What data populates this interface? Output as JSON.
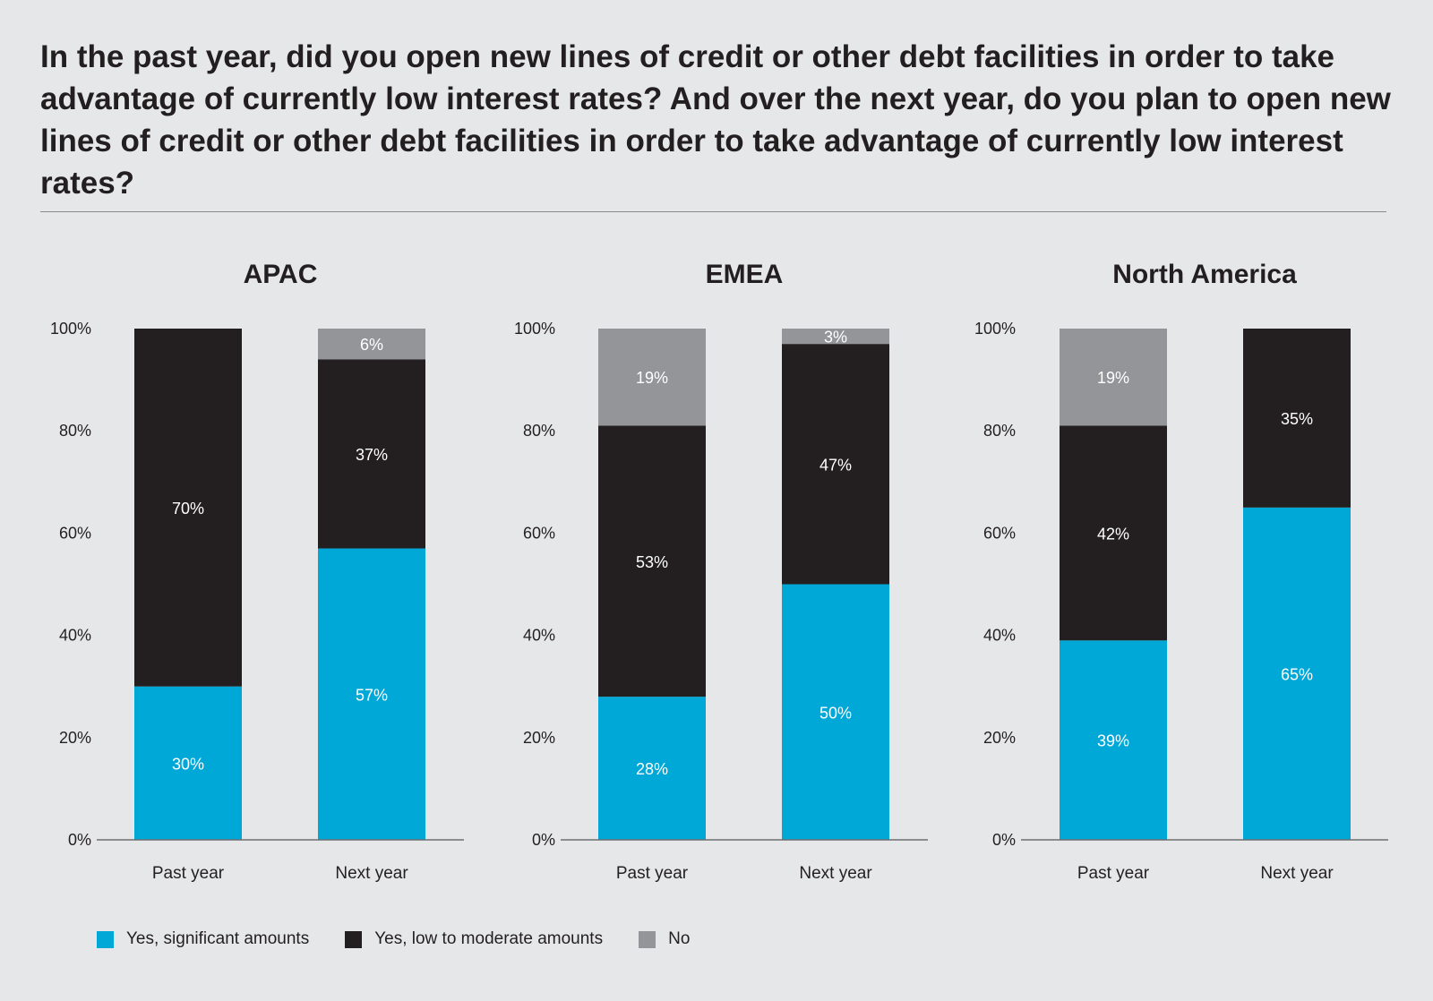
{
  "title": "In the past year, did you open new lines of credit or other debt facilities in order to take advantage of currently low interest rates? And over the next year, do you plan to open new lines of credit or other debt facilities in order to take advantage of currently low interest rates?",
  "colors": {
    "significant": "#00a8d8",
    "low_moderate": "#231f20",
    "no": "#939598"
  },
  "legend": [
    {
      "key": "significant",
      "label": "Yes, significant amounts"
    },
    {
      "key": "low_moderate",
      "label": "Yes, low to moderate amounts"
    },
    {
      "key": "no",
      "label": "No"
    }
  ],
  "chart_data": [
    {
      "type": "bar",
      "stacked": true,
      "title": "APAC",
      "categories": [
        "Past year",
        "Next year"
      ],
      "series": [
        {
          "name": "Yes, significant amounts",
          "key": "significant",
          "values": [
            30,
            57
          ]
        },
        {
          "name": "Yes, low to moderate amounts",
          "key": "low_moderate",
          "values": [
            70,
            37
          ]
        },
        {
          "name": "No",
          "key": "no",
          "values": [
            0,
            6
          ]
        }
      ],
      "ylim": [
        0,
        100
      ],
      "yticks": [
        "0%",
        "20%",
        "40%",
        "60%",
        "80%",
        "100%"
      ]
    },
    {
      "type": "bar",
      "stacked": true,
      "title": "EMEA",
      "categories": [
        "Past year",
        "Next year"
      ],
      "series": [
        {
          "name": "Yes, significant amounts",
          "key": "significant",
          "values": [
            28,
            50
          ]
        },
        {
          "name": "Yes, low to moderate amounts",
          "key": "low_moderate",
          "values": [
            53,
            47
          ]
        },
        {
          "name": "No",
          "key": "no",
          "values": [
            19,
            3
          ]
        }
      ],
      "ylim": [
        0,
        100
      ],
      "yticks": [
        "0%",
        "20%",
        "40%",
        "60%",
        "80%",
        "100%"
      ]
    },
    {
      "type": "bar",
      "stacked": true,
      "title": "North America",
      "categories": [
        "Past year",
        "Next year"
      ],
      "series": [
        {
          "name": "Yes, significant amounts",
          "key": "significant",
          "values": [
            39,
            65
          ]
        },
        {
          "name": "Yes, low to moderate amounts",
          "key": "low_moderate",
          "values": [
            42,
            35
          ]
        },
        {
          "name": "No",
          "key": "no",
          "values": [
            19,
            0
          ]
        }
      ],
      "ylim": [
        0,
        100
      ],
      "yticks": [
        "0%",
        "20%",
        "40%",
        "60%",
        "80%",
        "100%"
      ]
    }
  ]
}
